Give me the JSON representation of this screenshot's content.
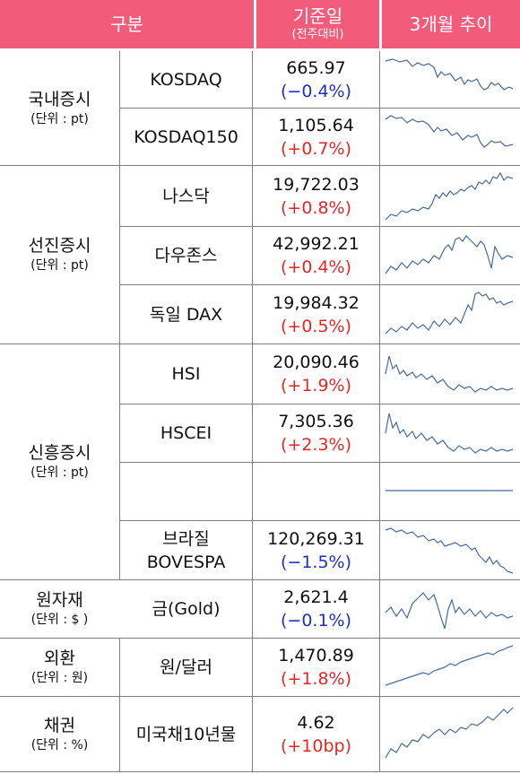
{
  "header": {
    "col1": "구분",
    "col2_main": "기준일",
    "col2_sub": "(전주대비)",
    "col3": "3개월 추이"
  },
  "groups": [
    {
      "title": "국내증시",
      "unit": "(단위 : pt)"
    },
    {
      "title": "선진증시",
      "unit": "(단위 : pt)"
    },
    {
      "title": "신흥증시",
      "unit": "(단위 : pt)"
    },
    {
      "title": "원자재",
      "unit": "(단위 : $ )"
    },
    {
      "title": "외환",
      "unit": "(단위 : 원)"
    },
    {
      "title": "채권",
      "unit": "(단위 : %)"
    }
  ],
  "rows": [
    {
      "name": "KOSDAQ",
      "value": "665.97",
      "change": "(−0.4%)"
    },
    {
      "name": "KOSDAQ150",
      "value": "1,105.64",
      "change": "(+0.7%)"
    },
    {
      "name": "나스닥",
      "value": "19,722.03",
      "change": "(+0.8%)"
    },
    {
      "name": "다우존스",
      "value": "42,992.21",
      "change": "(+0.4%)"
    },
    {
      "name": "독일 DAX",
      "value": "19,984.32",
      "change": "(+0.5%)"
    },
    {
      "name": "HSI",
      "value": "20,090.46",
      "change": "(+1.9%)"
    },
    {
      "name": "HSCEI",
      "value": "7,305.36",
      "change": "(+2.3%)"
    },
    {
      "name": "",
      "value": "",
      "change": ""
    },
    {
      "name_line1": "브라질",
      "name_line2": "BOVESPA",
      "value": "120,269.31",
      "change": "(−1.5%)"
    },
    {
      "name": "금(Gold)",
      "value": "2,621.4",
      "change": "(−0.1%)"
    },
    {
      "name": "원/달러",
      "value": "1,470.89",
      "change": "(+1.8%)"
    },
    {
      "name": "미국채10년물",
      "value": "4.62",
      "change": "(+10bp)"
    }
  ],
  "colors": {
    "header_bg": "#f35b7a",
    "negative": "#1f2fbf",
    "positive": "#e32626",
    "sparkline": "#4a6a9a",
    "grid": "#7f7f7f"
  }
}
